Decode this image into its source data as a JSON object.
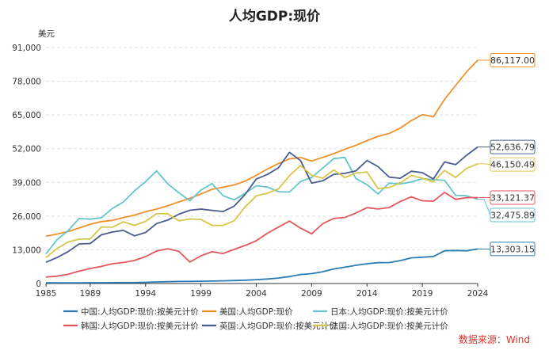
{
  "chart_data": {
    "type": "line",
    "title": "人均GDP:现价",
    "ylabel": "美元",
    "ylim": [
      0,
      91000
    ],
    "yticks": [
      0,
      13000,
      26000,
      39000,
      52000,
      65000,
      78000,
      91000
    ],
    "ytick_labels": [
      "0",
      "13,000",
      "26,000",
      "39,000",
      "52,000",
      "65,000",
      "78,000",
      "91,000"
    ],
    "xlim": [
      1985,
      2024
    ],
    "xticks": [
      1985,
      1989,
      1994,
      1999,
      2004,
      2009,
      2014,
      2019,
      2024
    ],
    "xtick_labels": [
      "1985",
      "1989",
      "1994",
      "1999",
      "2004",
      "2009",
      "2014",
      "2019",
      "2024"
    ],
    "x": [
      1985,
      1986,
      1987,
      1988,
      1989,
      1990,
      1991,
      1992,
      1993,
      1994,
      1995,
      1996,
      1997,
      1998,
      1999,
      2000,
      2001,
      2002,
      2003,
      2004,
      2005,
      2006,
      2007,
      2008,
      2009,
      2010,
      2011,
      2012,
      2013,
      2014,
      2015,
      2016,
      2017,
      2018,
      2019,
      2020,
      2021,
      2022,
      2023,
      2024
    ],
    "grid": true,
    "legend_position": "bottom",
    "source": "数据来源：Wind",
    "series": [
      {
        "name": "中国:人均GDP:现价:按美元计价",
        "color": "#2b7bb5",
        "end_label": "13,303.15",
        "values": [
          294,
          282,
          252,
          284,
          311,
          318,
          333,
          367,
          377,
          473,
          610,
          709,
          781,
          829,
          873,
          959,
          1053,
          1149,
          1289,
          1509,
          1753,
          2099,
          2694,
          3468,
          3832,
          4550,
          5614,
          6301,
          7020,
          7636,
          8016,
          8094,
          8817,
          9905,
          10144,
          10409,
          12618,
          12720,
          12614,
          13303
        ]
      },
      {
        "name": "美国:人均GDP:现价",
        "color": "#f0902b",
        "end_label": "86,117.00",
        "values": [
          18237,
          19071,
          20039,
          21418,
          22857,
          23889,
          24342,
          25419,
          26387,
          27695,
          28690,
          29968,
          31459,
          32854,
          34513,
          36330,
          37134,
          38023,
          39496,
          41713,
          44115,
          46299,
          48050,
          48570,
          47195,
          48651,
          50066,
          51784,
          53291,
          55124,
          56763,
          57867,
          59915,
          62805,
          65095,
          64317,
          70996,
          76330,
          81695,
          86117
        ]
      },
      {
        "name": "日本:人均GDP:现价:按美元计价",
        "color": "#63c6cc",
        "end_label": "32,475.89",
        "values": [
          11465,
          16882,
          20355,
          25059,
          24823,
          25371,
          28925,
          31465,
          35766,
          39269,
          43440,
          38437,
          35022,
          31902,
          36027,
          38532,
          33846,
          32289,
          34808,
          37689,
          37218,
          35434,
          35275,
          39339,
          40855,
          44508,
          48168,
          48603,
          40454,
          38109,
          34524,
          38761,
          38387,
          39159,
          40416,
          40040,
          39827,
          34017,
          33834,
          32476
        ]
      },
      {
        "name": "韩国:人均GDP:现价:按美元计价",
        "color": "#e3575c",
        "end_label": "33,121.37",
        "values": [
          2482,
          2834,
          3554,
          4749,
          5817,
          6610,
          7637,
          8127,
          8885,
          10385,
          12565,
          13403,
          12398,
          8282,
          10672,
          12257,
          11561,
          13165,
          14673,
          16496,
          19403,
          21744,
          24086,
          21350,
          19144,
          23087,
          25096,
          25459,
          27179,
          29249,
          28724,
          29288,
          31601,
          33447,
          31902,
          31721,
          35142,
          32423,
          33121,
          33121
        ]
      },
      {
        "name": "英国:人均GDP:现价:按美元计价",
        "color": "#4a5c8f",
        "end_label": "52,636.79",
        "values": [
          8180,
          10016,
          12288,
          15266,
          15417,
          18780,
          19861,
          20487,
          18389,
          19709,
          23123,
          24456,
          26716,
          28261,
          28693,
          28225,
          27745,
          29838,
          34383,
          40287,
          42040,
          44618,
          50567,
          47396,
          38713,
          39599,
          42109,
          42463,
          43449,
          47447,
          45071,
          41048,
          40572,
          43306,
          42747,
          40318,
          46870,
          45850,
          49464,
          52637
        ]
      },
      {
        "name": "法国:人均GDP:现价:按美元计价",
        "color": "#d6c74c",
        "end_label": "46,150.49",
        "values": [
          10000,
          13500,
          16000,
          17100,
          17200,
          21800,
          21700,
          23800,
          22400,
          24000,
          26900,
          26900,
          24200,
          24900,
          24700,
          22400,
          22400,
          24200,
          29600,
          33800,
          34800,
          36500,
          41600,
          45500,
          41700,
          40600,
          43800,
          40900,
          42600,
          43000,
          36600,
          37000,
          38800,
          41600,
          40600,
          39200,
          43600,
          40900,
          44400,
          46150
        ]
      }
    ]
  }
}
